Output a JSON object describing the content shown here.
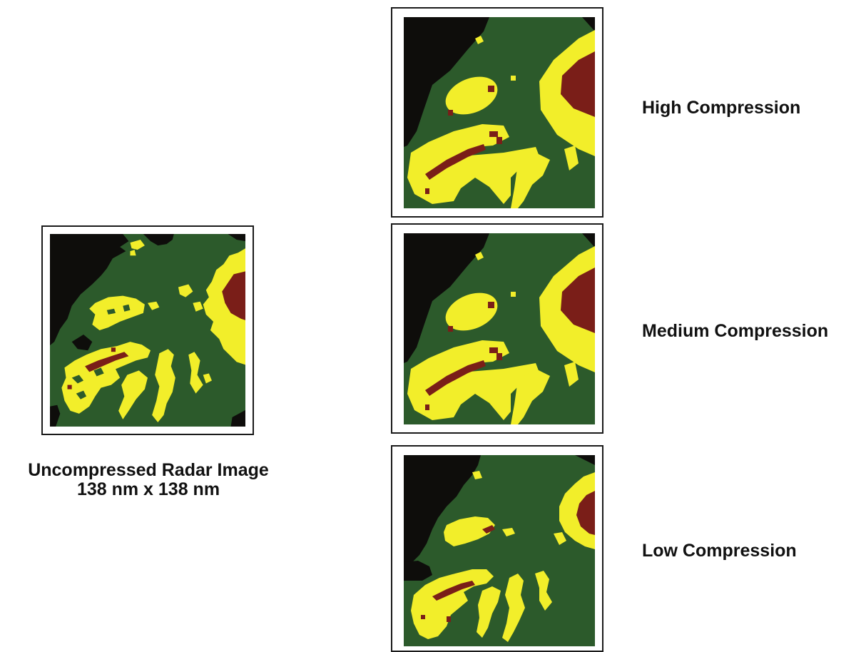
{
  "colors": {
    "background": "#0e0d0b",
    "green": "#2c5a2b",
    "yellow": "#f2ee2a",
    "red": "#7a1e18"
  },
  "panels": [
    {
      "id": "uncompressed",
      "caption_line1": "Uncompressed Radar Image",
      "caption_line2": "138 nm x 138 nm"
    },
    {
      "id": "high",
      "label": "High Compression"
    },
    {
      "id": "medium",
      "label": "Medium Compression"
    },
    {
      "id": "low",
      "label": "Low Compression"
    }
  ]
}
